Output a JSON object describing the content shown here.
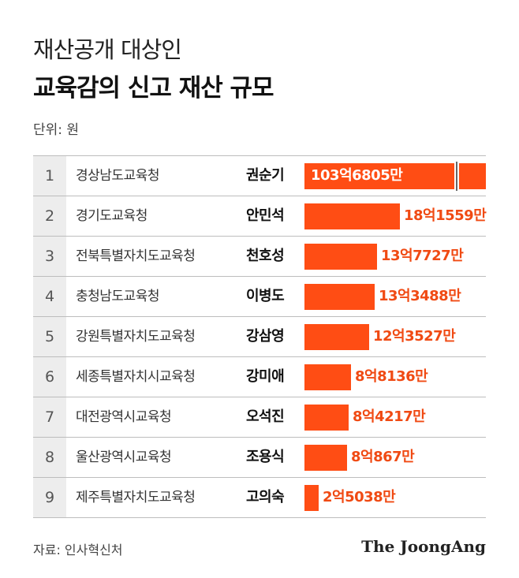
{
  "title_line1": "재산공개 대상인",
  "title_line2": "교육감의 신고 재산 규모",
  "unit": "단위: 원",
  "source": "자료: 인사혁신처",
  "logo": "The JoongAng",
  "colors": {
    "bar": "#ff4d14",
    "value_label": "#f04a13",
    "rank_cell": "#ededed"
  },
  "chart_data": {
    "type": "bar",
    "orientation": "horizontal",
    "axis_break": true,
    "title": "교육감의 신고 재산 규모",
    "unit": "원",
    "rows": [
      {
        "rank": "1",
        "office": "경상남도교육청",
        "name": "권순기",
        "value": 10368050000,
        "label": "103억6805만"
      },
      {
        "rank": "2",
        "office": "경기도교육청",
        "name": "안민석",
        "value": 1815590000,
        "label": "18억1559만"
      },
      {
        "rank": "3",
        "office": "전북특별자치도교육청",
        "name": "천호성",
        "value": 1377270000,
        "label": "13억7727만"
      },
      {
        "rank": "4",
        "office": "충청남도교육청",
        "name": "이병도",
        "value": 1334880000,
        "label": "13억3488만"
      },
      {
        "rank": "5",
        "office": "강원특별자치도교육청",
        "name": "강삼영",
        "value": 1235270000,
        "label": "12억3527만"
      },
      {
        "rank": "6",
        "office": "세종특별자치시교육청",
        "name": "강미애",
        "value": 881360000,
        "label": "8억8136만"
      },
      {
        "rank": "7",
        "office": "대전광역시교육청",
        "name": "오석진",
        "value": 842170000,
        "label": "8억4217만"
      },
      {
        "rank": "8",
        "office": "울산광역시교육청",
        "name": "조용식",
        "value": 808670000,
        "label": "8억867만"
      },
      {
        "rank": "9",
        "office": "제주특별자치도교육청",
        "name": "고의숙",
        "value": 250380000,
        "label": "2억5038만"
      }
    ]
  }
}
